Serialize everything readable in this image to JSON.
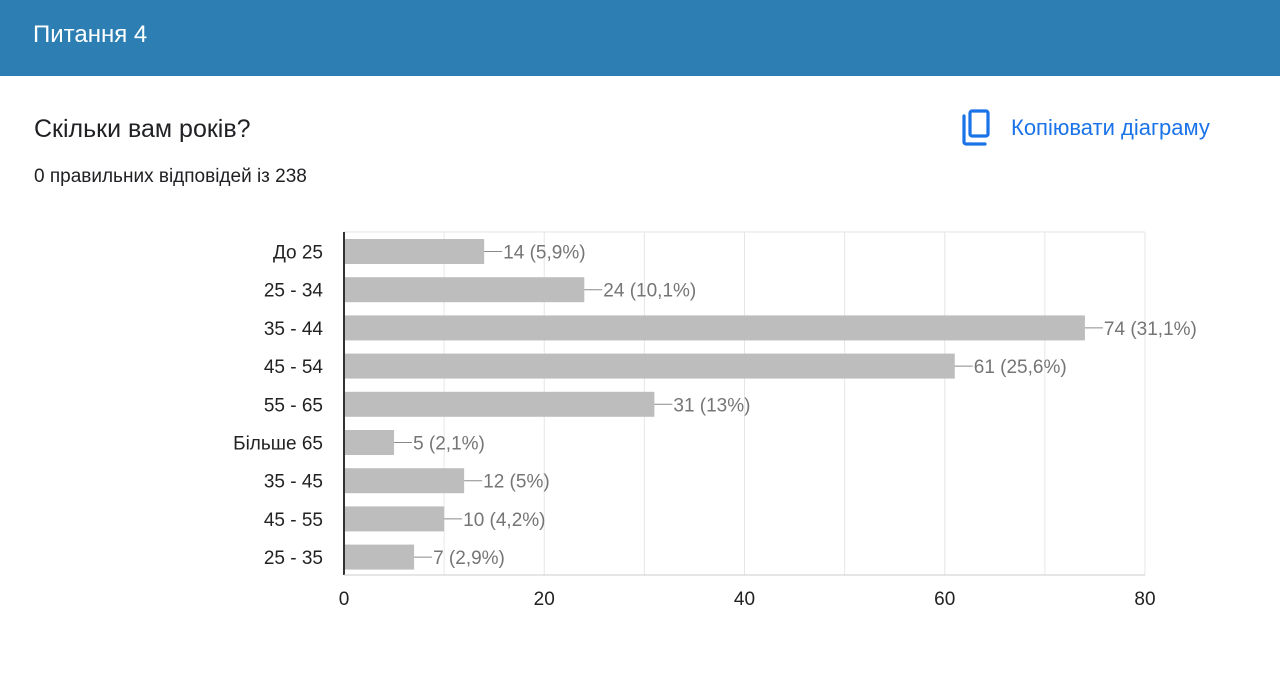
{
  "header": {
    "title": "Питання 4"
  },
  "question": {
    "title": "Скільки вам років?",
    "summary": "0 правильних відповідей із 238",
    "copy_label": "Копіювати діаграму",
    "copy_icon": "copy-icon"
  },
  "colors": {
    "header_bg": "#2d7fb3",
    "accent": "#1a73e8",
    "bar": "#bdbdbd",
    "grid": "#e6e6e6"
  },
  "chart_data": {
    "type": "bar",
    "orientation": "horizontal",
    "categories": [
      "До 25",
      "25 - 34",
      "35 - 44",
      "45 - 54",
      "55 - 65",
      "Більше 65",
      "35 - 45",
      "45 - 55",
      "25 - 35"
    ],
    "values": [
      14,
      24,
      74,
      61,
      31,
      5,
      12,
      10,
      7
    ],
    "data_labels": [
      "14 (5,9%)",
      "24 (10,1%)",
      "74 (31,1%)",
      "61 (25,6%)",
      "31 (13%)",
      "5 (2,1%)",
      "12 (5%)",
      "10 (4,2%)",
      "7 (2,9%)"
    ],
    "xlim": [
      0,
      80
    ],
    "xticks": [
      0,
      20,
      40,
      60,
      80
    ],
    "minor_grid_step": 10,
    "grid": true,
    "title": "Скільки вам років?",
    "xlabel": "",
    "ylabel": ""
  }
}
